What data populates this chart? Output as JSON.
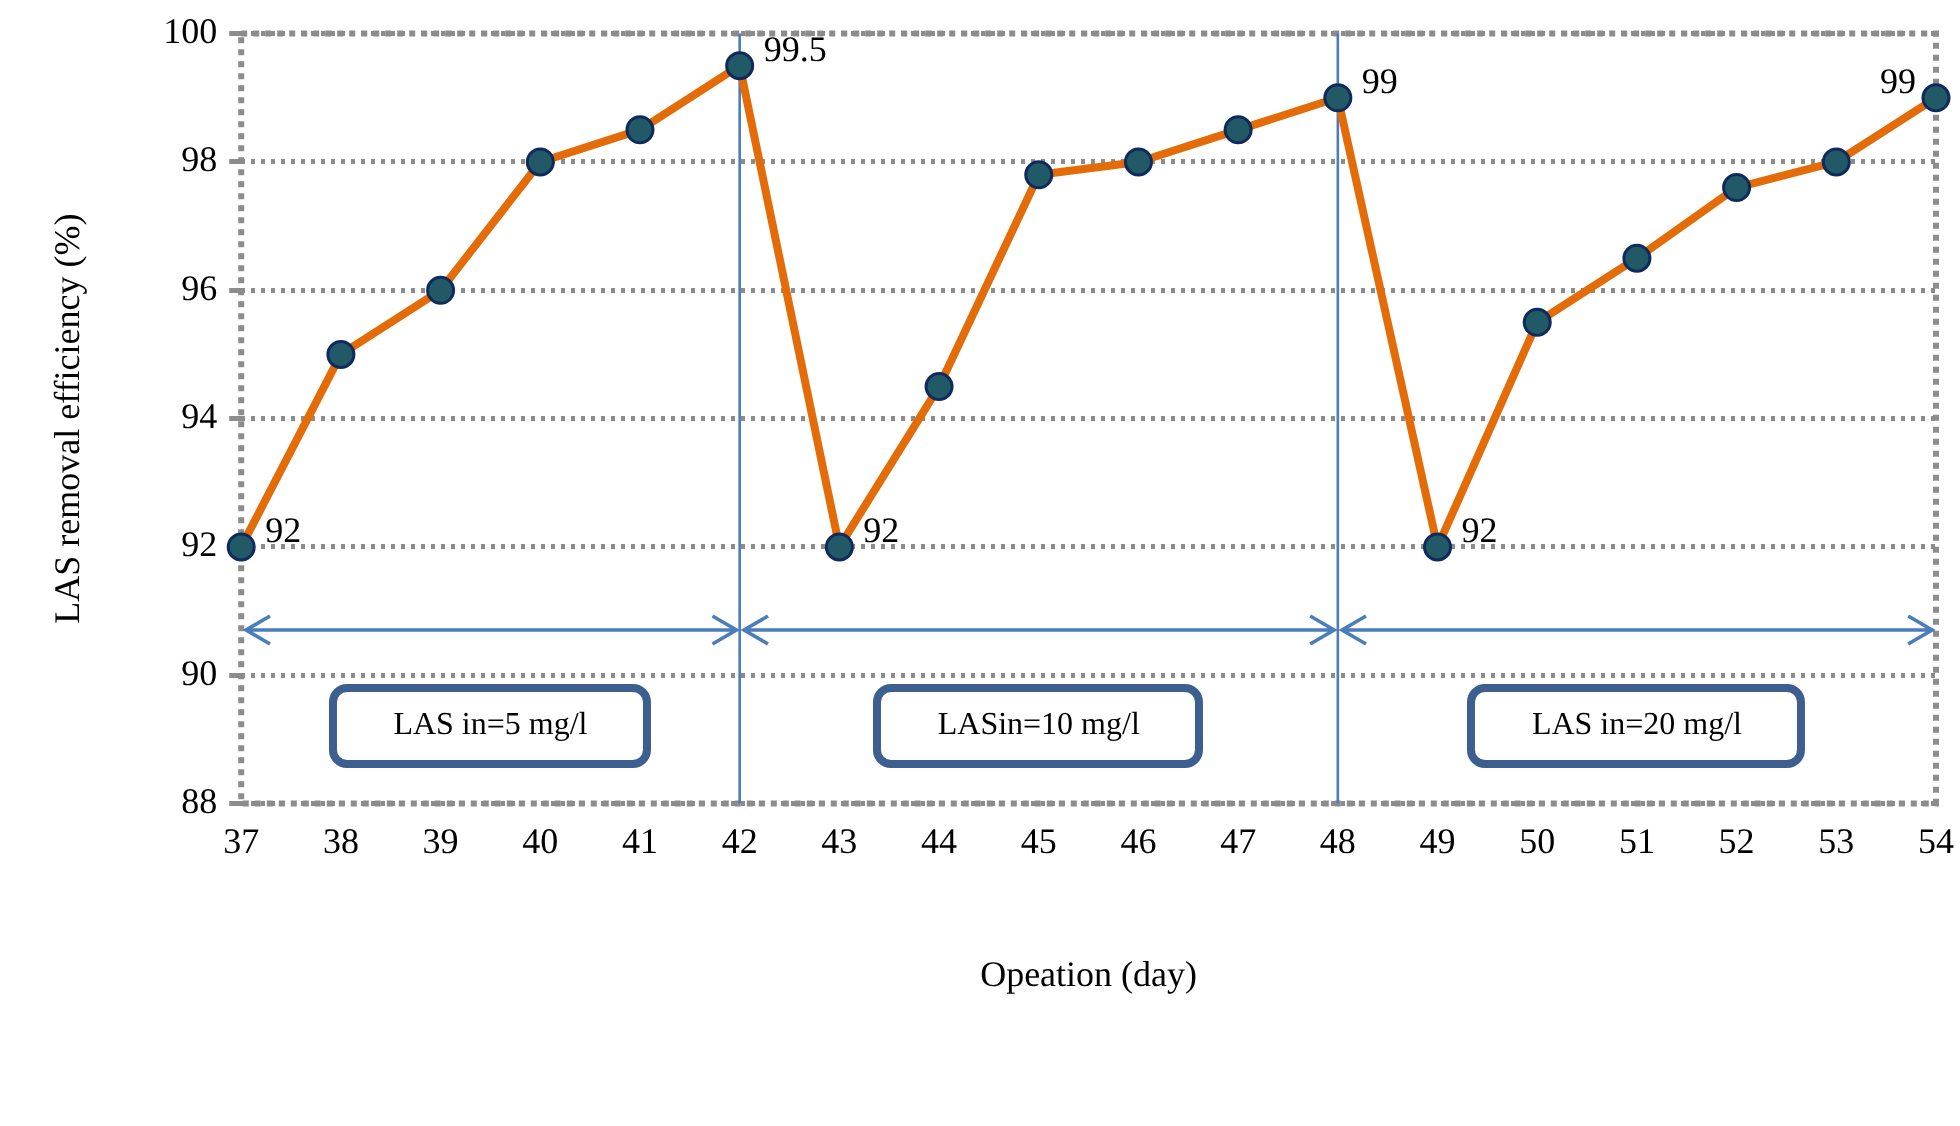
{
  "chart_data": {
    "type": "line",
    "xlabel": "Opeation (day)",
    "ylabel": "LAS removal efficiency (%)",
    "x": [
      37,
      38,
      39,
      40,
      41,
      42,
      43,
      44,
      45,
      46,
      47,
      48,
      49,
      50,
      51,
      52,
      53,
      54
    ],
    "series": [
      {
        "color": "#e36c09",
        "values": [
          92,
          95,
          96,
          98,
          98.5,
          99.5,
          92,
          94.5,
          97.8,
          98,
          98.5,
          99,
          92,
          95.5,
          96.5,
          97.6,
          98,
          99
        ],
        "value_labels": [
          "92",
          null,
          null,
          null,
          null,
          "99.5",
          "92",
          null,
          null,
          null,
          null,
          "99",
          "92",
          null,
          null,
          null,
          null,
          "99"
        ]
      }
    ],
    "marker": "circle",
    "line_style": "solid",
    "xlim": [
      37,
      54
    ],
    "xticks": [
      37,
      38,
      39,
      40,
      41,
      42,
      43,
      44,
      45,
      46,
      47,
      48,
      49,
      50,
      51,
      52,
      53,
      54
    ],
    "ylim": [
      88,
      100
    ],
    "yticks": [
      88,
      90,
      92,
      94,
      96,
      98,
      100
    ],
    "grid": "y",
    "legend": false,
    "ref_lines": [
      {
        "axis": "x",
        "value": 42,
        "color": "#4a7ebb"
      },
      {
        "axis": "x",
        "value": 48,
        "color": "#4a7ebb"
      }
    ],
    "annotations": [
      "LAS in=5 mg/l",
      "LASin=10 mg/l",
      "LAS in=20 mg/l"
    ]
  }
}
